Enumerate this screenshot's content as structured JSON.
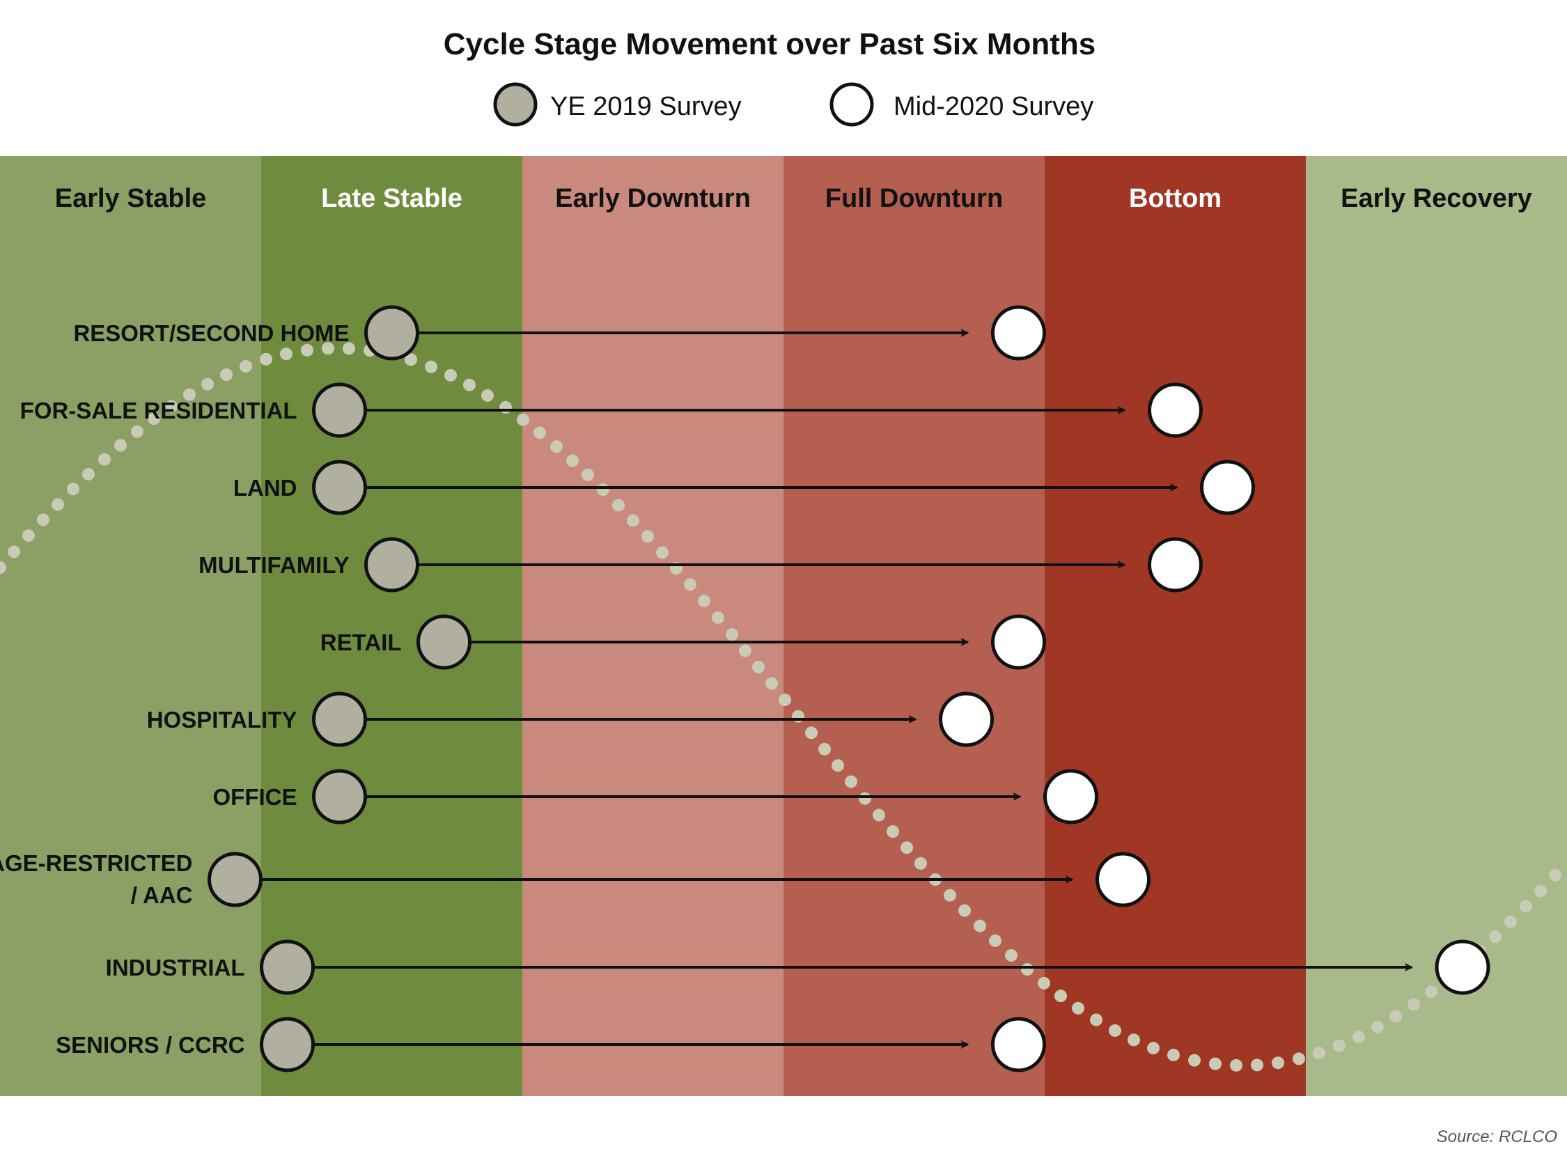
{
  "title": "Cycle Stage Movement over Past Six Months",
  "legend": [
    {
      "label": "YE 2019 Survey",
      "fill": "#b0afa0"
    },
    {
      "label": "Mid-2020 Survey",
      "fill": "#ffffff"
    }
  ],
  "stages": [
    {
      "label": "Early Stable",
      "bg": "#8ba065",
      "text": "#111111"
    },
    {
      "label": "Late Stable",
      "bg": "#6f8c3e",
      "text": "#ffffff"
    },
    {
      "label": "Early Downturn",
      "bg": "#c98a7d",
      "text": "#111111"
    },
    {
      "label": "Full Downturn",
      "bg": "#b55f50",
      "text": "#111111"
    },
    {
      "label": "Bottom",
      "bg": "#a03724",
      "text": "#ffffff"
    },
    {
      "label": "Early Recovery",
      "bg": "#a8b98a",
      "text": "#111111"
    }
  ],
  "rows": [
    {
      "label": [
        "RESORT/SECOND HOME"
      ],
      "ye2019": 1.5,
      "mid2020": 3.9
    },
    {
      "label": [
        "FOR-SALE RESIDENTIAL"
      ],
      "ye2019": 1.3,
      "mid2020": 4.5
    },
    {
      "label": [
        "LAND"
      ],
      "ye2019": 1.3,
      "mid2020": 4.7
    },
    {
      "label": [
        "MULTIFAMILY"
      ],
      "ye2019": 1.5,
      "mid2020": 4.5
    },
    {
      "label": [
        "RETAIL"
      ],
      "ye2019": 1.7,
      "mid2020": 3.9
    },
    {
      "label": [
        "HOSPITALITY"
      ],
      "ye2019": 1.3,
      "mid2020": 3.7
    },
    {
      "label": [
        "OFFICE"
      ],
      "ye2019": 1.3,
      "mid2020": 4.1
    },
    {
      "label": [
        "AGE-RESTRICTED",
        "/ AAC"
      ],
      "ye2019": 0.9,
      "mid2020": 4.3
    },
    {
      "label": [
        "INDUSTRIAL"
      ],
      "ye2019": 1.1,
      "mid2020": 5.6
    },
    {
      "label": [
        "SENIORS / CCRC"
      ],
      "ye2019": 1.1,
      "mid2020": 3.9
    }
  ],
  "source": "Source: RCLCO",
  "colors": {
    "arrow": "#111111",
    "circle_stroke": "#111111",
    "cycle_dots": "#c9cbb7"
  }
}
